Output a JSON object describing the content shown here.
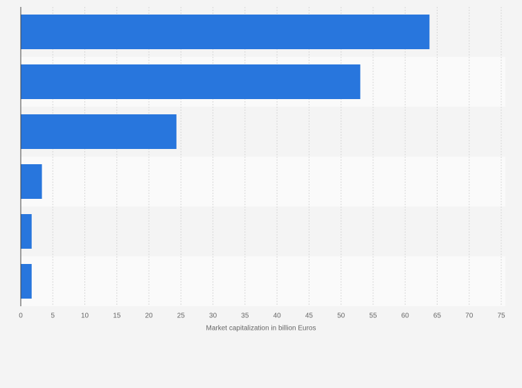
{
  "chart_data": {
    "type": "bar",
    "orientation": "horizontal",
    "x_label": "Market capitalization in billion Euros",
    "categories": [
      null,
      null,
      null,
      null,
      null,
      null
    ],
    "values": [
      63.8,
      53,
      24.3,
      3.3,
      1.7,
      1.7
    ],
    "color": "#2876dd",
    "xlim": [
      0,
      75
    ],
    "xticks": [
      0,
      5,
      10,
      15,
      20,
      25,
      30,
      35,
      40,
      45,
      50,
      55,
      60,
      65,
      70,
      75
    ],
    "grid": true
  }
}
